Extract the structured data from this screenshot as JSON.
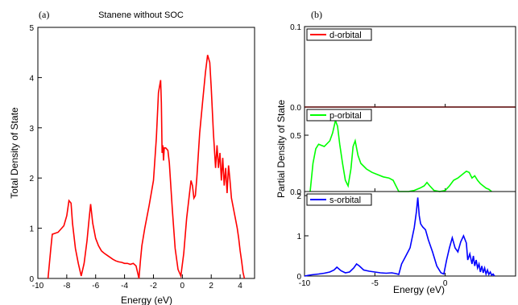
{
  "chart_data": [
    {
      "panel": "(a)",
      "type": "line",
      "title": "Stanene without SOC",
      "xlabel": "Energy (eV)",
      "ylabel": "Total Density of State",
      "xlim": [
        -10,
        5
      ],
      "ylim": [
        0,
        5
      ],
      "xticks": [
        -10,
        -8,
        -6,
        -4,
        -2,
        0,
        2,
        4
      ],
      "yticks": [
        0,
        1,
        2,
        3,
        4,
        5
      ],
      "grid": false,
      "color": "#ff0000",
      "series": [
        {
          "x": [
            -9.3,
            -9.1,
            -9.0,
            -8.6,
            -8.2,
            -8.0,
            -7.85,
            -7.7,
            -7.6,
            -7.4,
            -7.2,
            -7.0,
            -6.8,
            -6.6,
            -6.45,
            -6.35,
            -6.2,
            -6.1,
            -6.0,
            -5.8,
            -5.6,
            -5.4,
            -5.2,
            -5.0,
            -4.8,
            -4.6,
            -4.4,
            -4.2,
            -4.0,
            -3.8,
            -3.6,
            -3.4,
            -3.2,
            -3.0,
            -2.9,
            -2.8,
            -2.6,
            -2.3,
            -2.0,
            -1.8,
            -1.65,
            -1.5,
            -1.45,
            -1.4,
            -1.35,
            -1.3,
            -1.25,
            -1.15,
            -1.0,
            -0.9,
            -0.7,
            -0.5,
            -0.3,
            -0.1,
            0.1,
            0.3,
            0.5,
            0.6,
            0.7,
            0.8,
            0.9,
            1.0,
            1.2,
            1.4,
            1.6,
            1.75,
            1.9,
            2.0,
            2.15,
            2.3,
            2.4,
            2.5,
            2.6,
            2.7,
            2.8,
            2.9,
            3.0,
            3.1,
            3.2,
            3.3,
            3.4,
            3.5,
            3.6,
            3.7,
            3.8,
            3.9,
            4.0,
            4.1,
            4.2,
            4.3
          ],
          "y": [
            0.0,
            0.6,
            0.88,
            0.92,
            1.05,
            1.25,
            1.55,
            1.5,
            1.1,
            0.6,
            0.3,
            0.05,
            0.3,
            0.75,
            1.2,
            1.48,
            1.1,
            0.95,
            0.8,
            0.65,
            0.55,
            0.5,
            0.46,
            0.42,
            0.38,
            0.35,
            0.33,
            0.32,
            0.3,
            0.3,
            0.28,
            0.3,
            0.25,
            0.0,
            0.35,
            0.65,
            1.0,
            1.45,
            1.95,
            2.8,
            3.7,
            3.95,
            3.5,
            2.5,
            2.65,
            2.35,
            2.6,
            2.6,
            2.55,
            2.3,
            1.4,
            0.6,
            0.18,
            0.05,
            0.5,
            1.2,
            1.7,
            1.95,
            1.85,
            1.6,
            1.65,
            2.0,
            2.9,
            3.5,
            4.1,
            4.45,
            4.3,
            3.8,
            2.9,
            2.2,
            2.65,
            2.2,
            2.5,
            1.95,
            2.4,
            1.85,
            2.2,
            1.7,
            2.25,
            1.95,
            1.6,
            1.45,
            1.3,
            1.15,
            1.0,
            0.8,
            0.55,
            0.35,
            0.12,
            0.0
          ]
        }
      ]
    },
    {
      "panel": "(b)",
      "type": "line",
      "xlabel": "Energy (eV)",
      "ylabel": "Partial Density of State",
      "xlim": [
        -10,
        5
      ],
      "xticks": [
        -10,
        -5,
        0
      ],
      "grid": false,
      "subplots": [
        {
          "legend": "d-orbital",
          "color": "#ff0000",
          "ylim": [
            0,
            0.1
          ],
          "yticks": [
            0.0,
            0.1
          ],
          "x": [
            -10,
            5
          ],
          "y": [
            0.0,
            0.0
          ]
        },
        {
          "legend": "p-orbital",
          "color": "#00ff00",
          "ylim": [
            0,
            0.75
          ],
          "yticks": [
            0.0,
            0.5
          ],
          "x": [
            -9.6,
            -9.4,
            -9.2,
            -9.0,
            -8.6,
            -8.2,
            -8.0,
            -7.8,
            -7.65,
            -7.5,
            -7.3,
            -7.1,
            -6.9,
            -6.7,
            -6.55,
            -6.4,
            -6.2,
            -6.0,
            -5.6,
            -5.2,
            -4.8,
            -4.4,
            -4.0,
            -3.7,
            -3.5,
            -3.3,
            -3.0,
            -2.6,
            -2.2,
            -1.8,
            -1.5,
            -1.3,
            -1.1,
            -0.8,
            -0.4,
            0.0,
            0.3,
            0.6,
            0.9,
            1.2,
            1.5,
            1.7,
            1.9,
            2.1,
            2.3,
            2.5,
            2.7,
            2.9,
            3.1,
            3.3
          ],
          "y": [
            0.0,
            0.25,
            0.38,
            0.42,
            0.4,
            0.45,
            0.52,
            0.63,
            0.58,
            0.42,
            0.25,
            0.1,
            0.05,
            0.2,
            0.4,
            0.45,
            0.32,
            0.25,
            0.2,
            0.17,
            0.15,
            0.13,
            0.12,
            0.1,
            0.05,
            0.0,
            0.0,
            0.0,
            0.01,
            0.03,
            0.05,
            0.08,
            0.05,
            0.01,
            0.0,
            0.01,
            0.05,
            0.1,
            0.12,
            0.15,
            0.18,
            0.17,
            0.12,
            0.14,
            0.1,
            0.07,
            0.05,
            0.03,
            0.02,
            0.0
          ]
        },
        {
          "legend": "s-orbital",
          "color": "#0000ff",
          "ylim": [
            0,
            2.1
          ],
          "yticks": [
            0,
            1,
            2
          ],
          "x": [
            -10.0,
            -9.5,
            -9.0,
            -8.6,
            -8.2,
            -7.9,
            -7.7,
            -7.4,
            -7.1,
            -6.8,
            -6.5,
            -6.3,
            -6.1,
            -5.8,
            -5.4,
            -5.0,
            -4.6,
            -4.2,
            -3.8,
            -3.5,
            -3.3,
            -3.1,
            -2.8,
            -2.5,
            -2.2,
            -2.05,
            -1.95,
            -1.85,
            -1.75,
            -1.6,
            -1.4,
            -1.2,
            -0.9,
            -0.6,
            -0.3,
            -0.1,
            0.1,
            0.3,
            0.5,
            0.7,
            0.9,
            1.1,
            1.3,
            1.5,
            1.6,
            1.75,
            1.9,
            2.0,
            2.1,
            2.2,
            2.3,
            2.4,
            2.5,
            2.6,
            2.7,
            2.8,
            2.9,
            3.0,
            3.1,
            3.2,
            3.3,
            3.4,
            3.5
          ],
          "y": [
            0.0,
            0.03,
            0.05,
            0.07,
            0.1,
            0.15,
            0.22,
            0.13,
            0.08,
            0.1,
            0.2,
            0.3,
            0.25,
            0.15,
            0.12,
            0.1,
            0.08,
            0.07,
            0.08,
            0.06,
            0.04,
            0.3,
            0.5,
            0.7,
            1.2,
            1.6,
            1.95,
            1.5,
            1.3,
            1.22,
            1.15,
            0.9,
            0.6,
            0.25,
            0.08,
            0.05,
            0.4,
            0.7,
            0.95,
            0.7,
            0.6,
            0.85,
            1.0,
            0.82,
            0.4,
            0.55,
            0.3,
            0.5,
            0.25,
            0.4,
            0.2,
            0.3,
            0.1,
            0.25,
            0.08,
            0.2,
            0.05,
            0.15,
            0.04,
            0.1,
            0.02,
            0.05,
            0.0
          ]
        }
      ]
    }
  ]
}
